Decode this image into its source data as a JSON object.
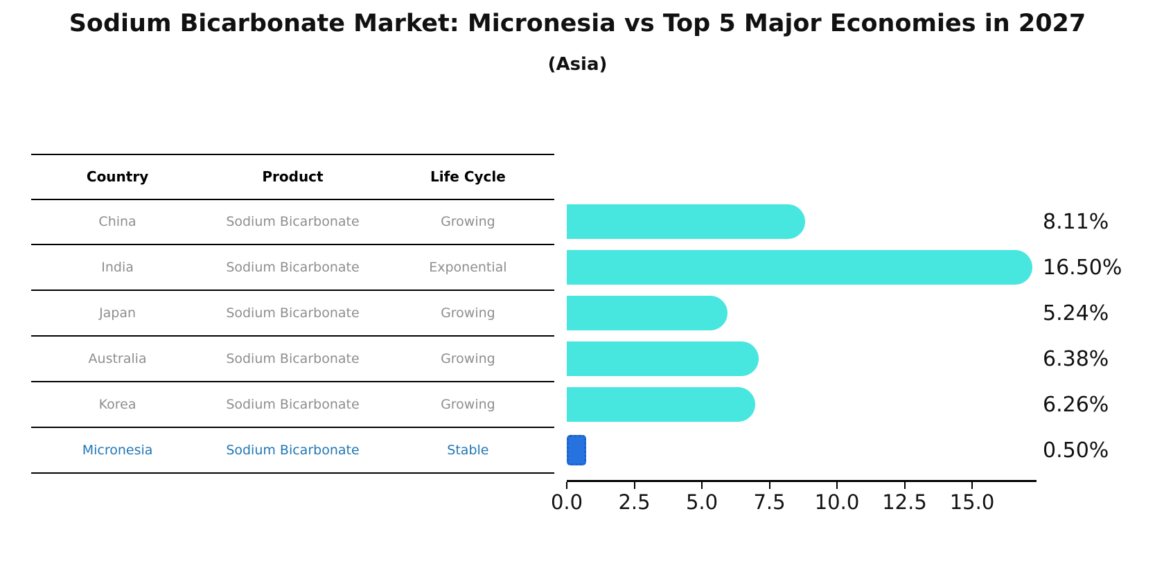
{
  "title": "Sodium Bicarbonate Market: Micronesia vs Top 5 Major Economies in 2027",
  "subtitle": "(Asia)",
  "table": {
    "headers": [
      "Country",
      "Product",
      "Life Cycle"
    ],
    "rows": [
      {
        "country": "China",
        "product": "Sodium Bicarbonate",
        "life_cycle": "Growing",
        "highlight": false
      },
      {
        "country": "India",
        "product": "Sodium Bicarbonate",
        "life_cycle": "Exponential",
        "highlight": false
      },
      {
        "country": "Japan",
        "product": "Sodium Bicarbonate",
        "life_cycle": "Growing",
        "highlight": false
      },
      {
        "country": "Australia",
        "product": "Sodium Bicarbonate",
        "life_cycle": "Growing",
        "highlight": false
      },
      {
        "country": "Korea",
        "product": "Sodium Bicarbonate",
        "life_cycle": "Growing",
        "highlight": false
      },
      {
        "country": "Micronesia",
        "product": "Sodium Bicarbonate",
        "life_cycle": "Stable",
        "highlight": true
      }
    ]
  },
  "chart_data": {
    "type": "bar",
    "orientation": "horizontal",
    "title": "Sodium Bicarbonate Market: Micronesia vs Top 5 Major Economies in 2027",
    "subtitle": "(Asia)",
    "categories": [
      "China",
      "India",
      "Japan",
      "Australia",
      "Korea",
      "Micronesia"
    ],
    "values": [
      8.11,
      16.5,
      5.24,
      6.38,
      6.26,
      0.5
    ],
    "value_labels": [
      "8.11%",
      "16.50%",
      "5.24%",
      "6.38%",
      "6.26%",
      "0.50%"
    ],
    "x_ticks": [
      0,
      2.5,
      5,
      7.5,
      10,
      12.5,
      15
    ],
    "x_tick_labels": [
      "0.0",
      "2.5",
      "5.0",
      "7.5",
      "10.0",
      "12.5",
      "15.0"
    ],
    "xlim": [
      0,
      17.3
    ],
    "grid": false,
    "legend": false,
    "bar_color": "#47e6df",
    "highlight_bar_color": "#2673e0",
    "highlight_text_color": "#1f77b4"
  }
}
